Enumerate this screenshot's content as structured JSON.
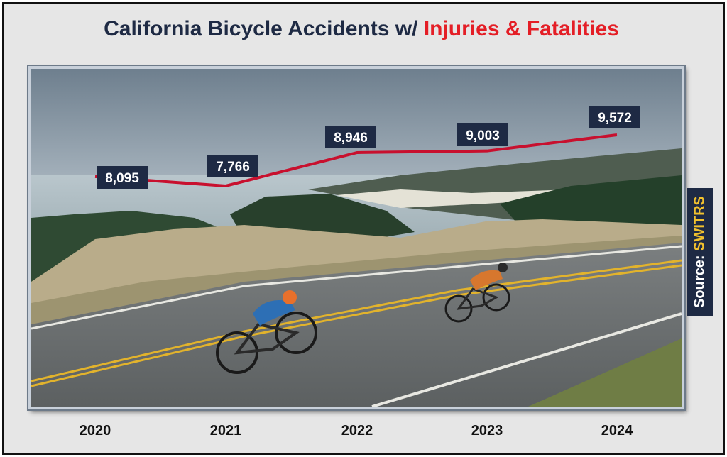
{
  "chart_data": {
    "type": "line",
    "title": "California Bicycle Accidents w/",
    "title_highlight": "Injuries & Fatalities",
    "categories": [
      "2020",
      "2021",
      "2022",
      "2023",
      "2024"
    ],
    "series": [
      {
        "values": [
          8095,
          7766,
          8946,
          9003,
          9572
        ],
        "labels": [
          "8,095",
          "7,766",
          "8,946",
          "9,003",
          "9,572"
        ],
        "color": "#c8102e"
      }
    ],
    "source_label": "Source:",
    "source_name": "SWITRS",
    "colors": {
      "title": "#1e2a44",
      "title_highlight": "#e41e26",
      "label_bg": "#1e2a44",
      "source_highlight": "#f2c12e"
    }
  }
}
